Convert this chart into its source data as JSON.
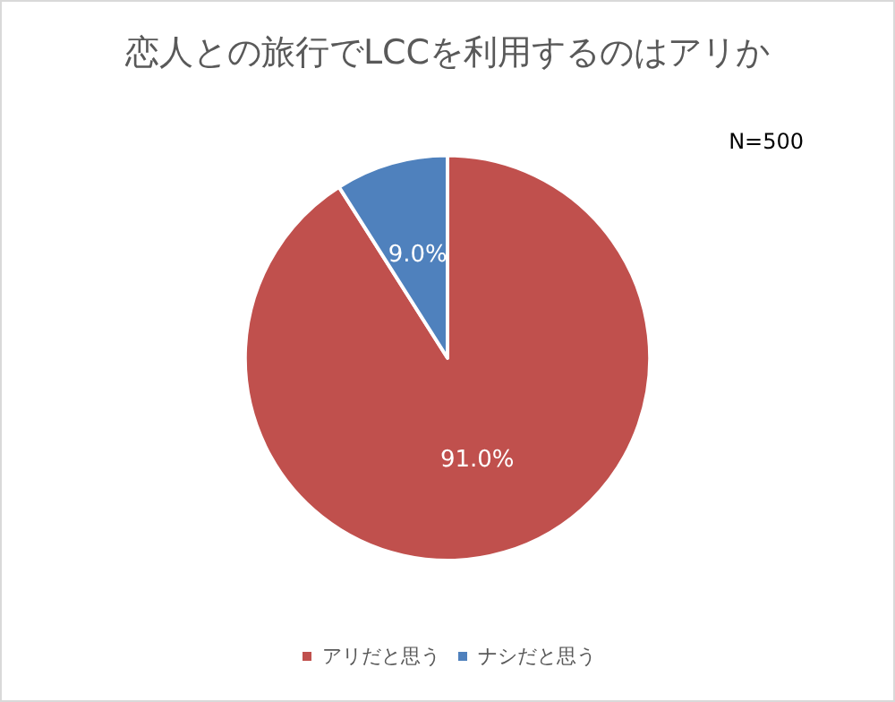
{
  "chart_data": {
    "type": "pie",
    "title": "恋人との旅行でLCCを利用するのはアリか",
    "categories": [
      "アリだと思う",
      "ナシだと思う"
    ],
    "values": [
      91.0,
      9.0
    ],
    "colors": [
      "#c0504d",
      "#4f81bd"
    ],
    "value_labels": [
      "91.0%",
      "9.0%"
    ],
    "annotations": [
      "N=500"
    ],
    "legend": "bottom"
  }
}
